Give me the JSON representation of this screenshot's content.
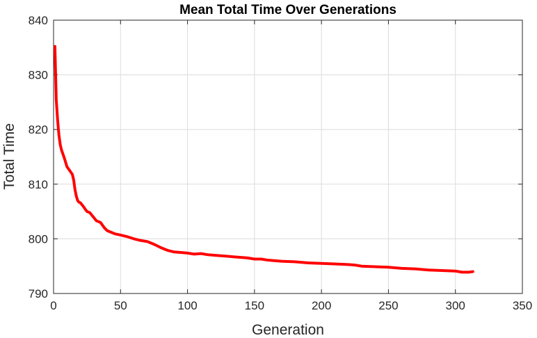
{
  "chart_data": {
    "type": "line",
    "title": "Mean Total Time Over Generations",
    "xlabel": "Generation",
    "ylabel": "Total Time",
    "xlim": [
      0,
      350
    ],
    "ylim": [
      790,
      840
    ],
    "xticks": [
      0,
      50,
      100,
      150,
      200,
      250,
      300,
      350
    ],
    "yticks": [
      790,
      800,
      810,
      820,
      830,
      840
    ],
    "grid": true,
    "series": [
      {
        "color": "#ff0000",
        "x": [
          1,
          2,
          3,
          4,
          5,
          6,
          8,
          10,
          12,
          14,
          15,
          16,
          17,
          18,
          19,
          20,
          22,
          24,
          25,
          27,
          30,
          32,
          35,
          38,
          40,
          43,
          46,
          50,
          55,
          60,
          65,
          70,
          75,
          80,
          85,
          90,
          95,
          100,
          105,
          110,
          115,
          120,
          125,
          130,
          135,
          140,
          145,
          150,
          155,
          160,
          170,
          180,
          190,
          200,
          210,
          220,
          225,
          230,
          240,
          250,
          260,
          270,
          280,
          290,
          300,
          305,
          310,
          313
        ],
        "y": [
          835.2,
          825.5,
          821.8,
          819.0,
          817.2,
          816.2,
          814.8,
          813.2,
          812.5,
          811.8,
          810.8,
          809.0,
          807.8,
          807.0,
          806.7,
          806.6,
          806.0,
          805.3,
          805.0,
          804.8,
          803.9,
          803.3,
          803.0,
          802.0,
          801.5,
          801.2,
          800.9,
          800.7,
          800.4,
          800.0,
          799.7,
          799.5,
          799.0,
          798.4,
          797.9,
          797.6,
          797.5,
          797.4,
          797.2,
          797.3,
          797.1,
          797.0,
          796.9,
          796.8,
          796.7,
          796.6,
          796.5,
          796.3,
          796.3,
          796.1,
          795.9,
          795.8,
          795.6,
          795.5,
          795.4,
          795.3,
          795.2,
          795.0,
          794.9,
          794.8,
          794.6,
          794.5,
          794.3,
          794.2,
          794.1,
          793.9,
          793.9,
          794.0
        ]
      }
    ]
  }
}
